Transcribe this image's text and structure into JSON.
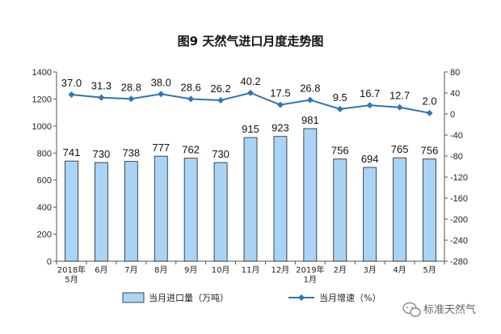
{
  "chart_data": {
    "type": "bar",
    "title": "图9  天然气进口月度走势图",
    "categories": [
      [
        "2018年",
        "5月"
      ],
      [
        "6月"
      ],
      [
        "7月"
      ],
      [
        "8月"
      ],
      [
        "9月"
      ],
      [
        "10月"
      ],
      [
        "11月"
      ],
      [
        "12月"
      ],
      [
        "2019年",
        "1月"
      ],
      [
        "2月"
      ],
      [
        "3月"
      ],
      [
        "4月"
      ],
      [
        "5月"
      ]
    ],
    "series": [
      {
        "name": "当月进口量（万吨）",
        "type": "bar",
        "axis": "left",
        "color": "#a9d4f5",
        "values": [
          741,
          730,
          738,
          777,
          762,
          730,
          915,
          923,
          981,
          756,
          694,
          765,
          756
        ]
      },
      {
        "name": "当月增速（%）",
        "type": "line",
        "axis": "right",
        "color": "#2e75b6",
        "values": [
          37.0,
          31.3,
          28.8,
          38.0,
          28.6,
          26.2,
          40.2,
          17.5,
          26.8,
          9.5,
          16.7,
          12.7,
          2.0
        ],
        "labels": [
          "37.0",
          "31.3",
          "28.8",
          "38.0",
          "28.6",
          "26.2",
          "40.2",
          "17.5",
          "26.8",
          "9.5",
          "16.7",
          "12.7",
          "2.0"
        ]
      }
    ],
    "y_left": {
      "ylim": [
        0,
        1400
      ],
      "ticks": [
        0,
        200,
        400,
        600,
        800,
        1000,
        1200,
        1400
      ]
    },
    "y_right": {
      "ylim": [
        -280,
        80
      ],
      "ticks": [
        80,
        40,
        0,
        -40,
        -80,
        -120,
        -160,
        -200,
        -240,
        -280
      ]
    },
    "legend_position": "bottom",
    "grid": false
  },
  "watermark": "标准天然气"
}
